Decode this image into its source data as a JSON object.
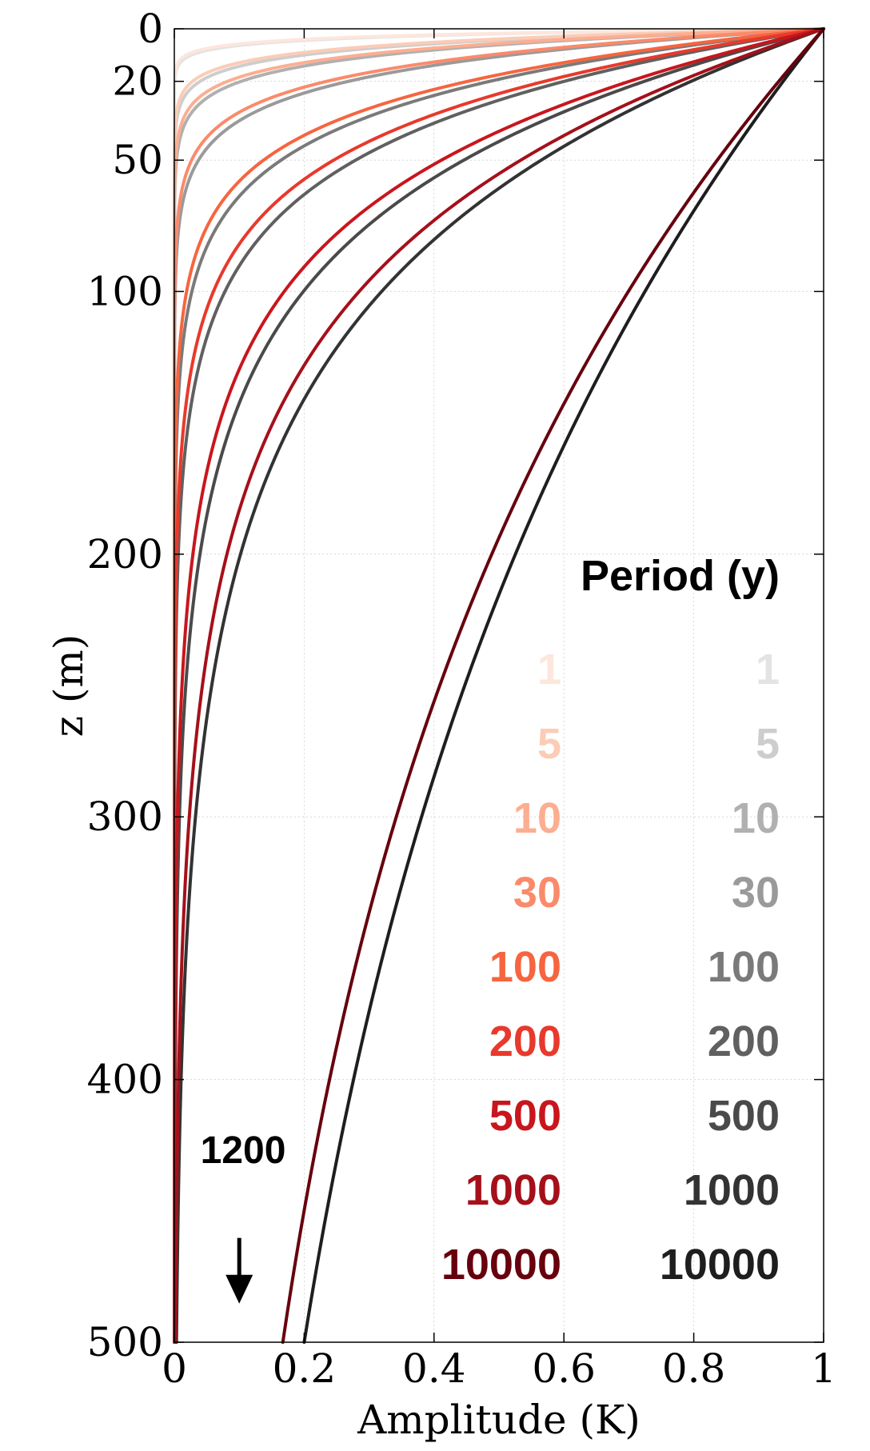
{
  "chart_data": {
    "type": "line",
    "title": "",
    "xlabel": "Amplitude (K)",
    "ylabel": "z (m)",
    "xlim": [
      0,
      1
    ],
    "ylim": [
      500,
      0
    ],
    "y_inverted": true,
    "grid": true,
    "xticks": [
      0,
      0.2,
      0.4,
      0.6,
      0.8,
      1
    ],
    "xtick_labels": [
      "0",
      "0.2",
      "0.4",
      "0.6",
      "0.8",
      "1"
    ],
    "yticks": [
      0,
      20,
      50,
      100,
      200,
      300,
      400,
      500
    ],
    "ytick_labels": [
      "0",
      "20",
      "50",
      "100",
      "200",
      "300",
      "400",
      "500"
    ],
    "model": "amplitude = exp(-z / skin_depth_m)",
    "legend": {
      "title": "Period (y)",
      "placement": "right"
    },
    "series": [
      {
        "group": "red",
        "label": "1",
        "period_y": 1,
        "color": "#fde6dc",
        "skin_depth_m": 2.5
      },
      {
        "group": "red",
        "label": "5",
        "period_y": 5,
        "color": "#fcccb6",
        "skin_depth_m": 5.6
      },
      {
        "group": "red",
        "label": "10",
        "period_y": 10,
        "color": "#fcae91",
        "skin_depth_m": 8.0
      },
      {
        "group": "red",
        "label": "30",
        "period_y": 30,
        "color": "#fb8a6a",
        "skin_depth_m": 13.8
      },
      {
        "group": "red",
        "label": "100",
        "period_y": 100,
        "color": "#f6653f",
        "skin_depth_m": 25.2
      },
      {
        "group": "red",
        "label": "200",
        "period_y": 200,
        "color": "#e8392c",
        "skin_depth_m": 35.6
      },
      {
        "group": "red",
        "label": "500",
        "period_y": 500,
        "color": "#c8161d",
        "skin_depth_m": 56.3
      },
      {
        "group": "red",
        "label": "1000",
        "period_y": 1000,
        "color": "#a5101a",
        "skin_depth_m": 79.6
      },
      {
        "group": "red",
        "label": "10000",
        "period_y": 10000,
        "color": "#67000d",
        "skin_depth_m": 279.5
      },
      {
        "group": "grey",
        "label": "1",
        "period_y": 1,
        "color": "#e3e3e3",
        "skin_depth_m": 2.75
      },
      {
        "group": "grey",
        "label": "5",
        "period_y": 5,
        "color": "#cdcdcd",
        "skin_depth_m": 6.2
      },
      {
        "group": "grey",
        "label": "10",
        "period_y": 10,
        "color": "#b0b0b0",
        "skin_depth_m": 8.8
      },
      {
        "group": "grey",
        "label": "30",
        "period_y": 30,
        "color": "#9a9a9a",
        "skin_depth_m": 15.2
      },
      {
        "group": "grey",
        "label": "100",
        "period_y": 100,
        "color": "#7a7a7a",
        "skin_depth_m": 27.7
      },
      {
        "group": "grey",
        "label": "200",
        "period_y": 200,
        "color": "#606060",
        "skin_depth_m": 39.2
      },
      {
        "group": "grey",
        "label": "500",
        "period_y": 500,
        "color": "#4a4a4a",
        "skin_depth_m": 61.9
      },
      {
        "group": "grey",
        "label": "1000",
        "period_y": 1000,
        "color": "#333333",
        "skin_depth_m": 87.6
      },
      {
        "group": "grey",
        "label": "10000",
        "period_y": 10000,
        "color": "#1e1e1e",
        "skin_depth_m": 310.7
      }
    ],
    "annotations": [
      {
        "text": "1200",
        "arrow": "down",
        "x": 0.1,
        "y_from": 460,
        "y_to": 485
      }
    ]
  }
}
